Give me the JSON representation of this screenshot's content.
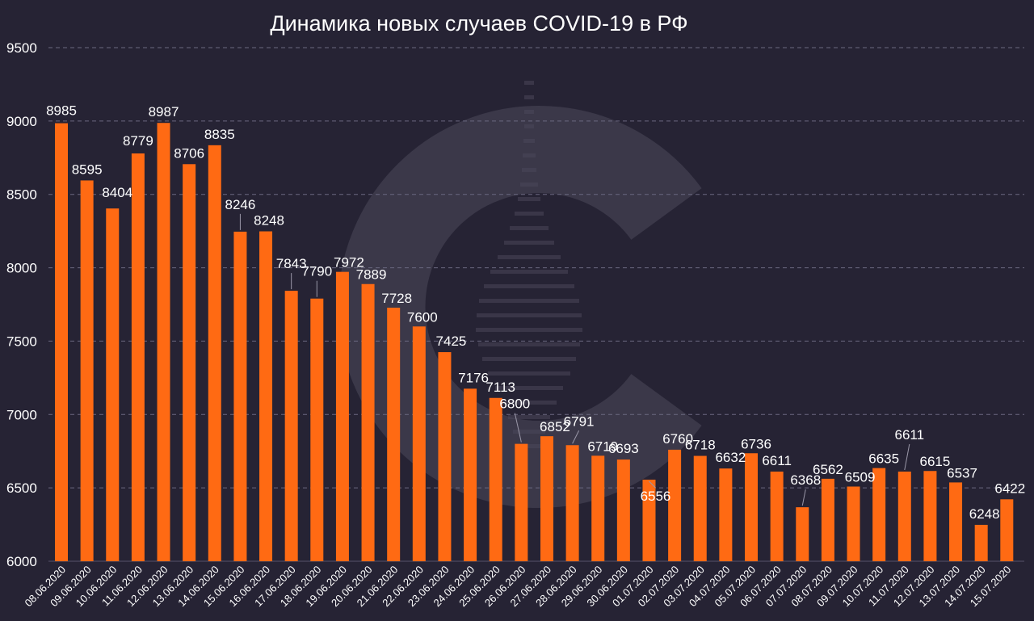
{
  "chart_data": {
    "type": "bar",
    "title": "Динамика новых случаев COVID-19 в РФ",
    "categories": [
      "08.06.2020",
      "09.06.2020",
      "10.06.2020",
      "11.06.2020",
      "12.06.2020",
      "13.06.2020",
      "14.06.2020",
      "15.06.2020",
      "16.06.2020",
      "17.06.2020",
      "18.06.2020",
      "19.06.2020",
      "20.06.2020",
      "21.06.2020",
      "22.06.2020",
      "23.06.2020",
      "24.06.2020",
      "25.06.2020",
      "26.06.2020",
      "27.06.2020",
      "28.06.2020",
      "29.06.2020",
      "30.06.2020",
      "01.07.2020",
      "02.07.2020",
      "03.07.2020",
      "04.07.2020",
      "05.07.2020",
      "06.07.2020",
      "07.07.2020",
      "08.07.2020",
      "09.07.2020",
      "10.07.2020",
      "11.07.2020",
      "12.07.2020",
      "13.07.2020",
      "14.07.2020",
      "15.07.2020"
    ],
    "values": [
      8985,
      8595,
      8404,
      8779,
      8987,
      8706,
      8835,
      8246,
      8248,
      7843,
      7790,
      7972,
      7889,
      7728,
      7600,
      7425,
      7176,
      7113,
      6800,
      6852,
      6791,
      6719,
      6693,
      6556,
      6760,
      6718,
      6632,
      6736,
      6611,
      6368,
      6562,
      6509,
      6635,
      6611,
      6615,
      6537,
      6248,
      6422
    ],
    "ylim": [
      6000,
      9500
    ],
    "yticks": [
      6000,
      6500,
      7000,
      7500,
      8000,
      8500,
      9000,
      9500
    ],
    "xlabel": "",
    "ylabel": "",
    "grid": true,
    "legend": "none",
    "colors": {
      "background": "#262334",
      "bar": "#ff6a13",
      "text": "#ffffff",
      "grid": "#6b6880",
      "watermark": "#3b3849"
    }
  }
}
